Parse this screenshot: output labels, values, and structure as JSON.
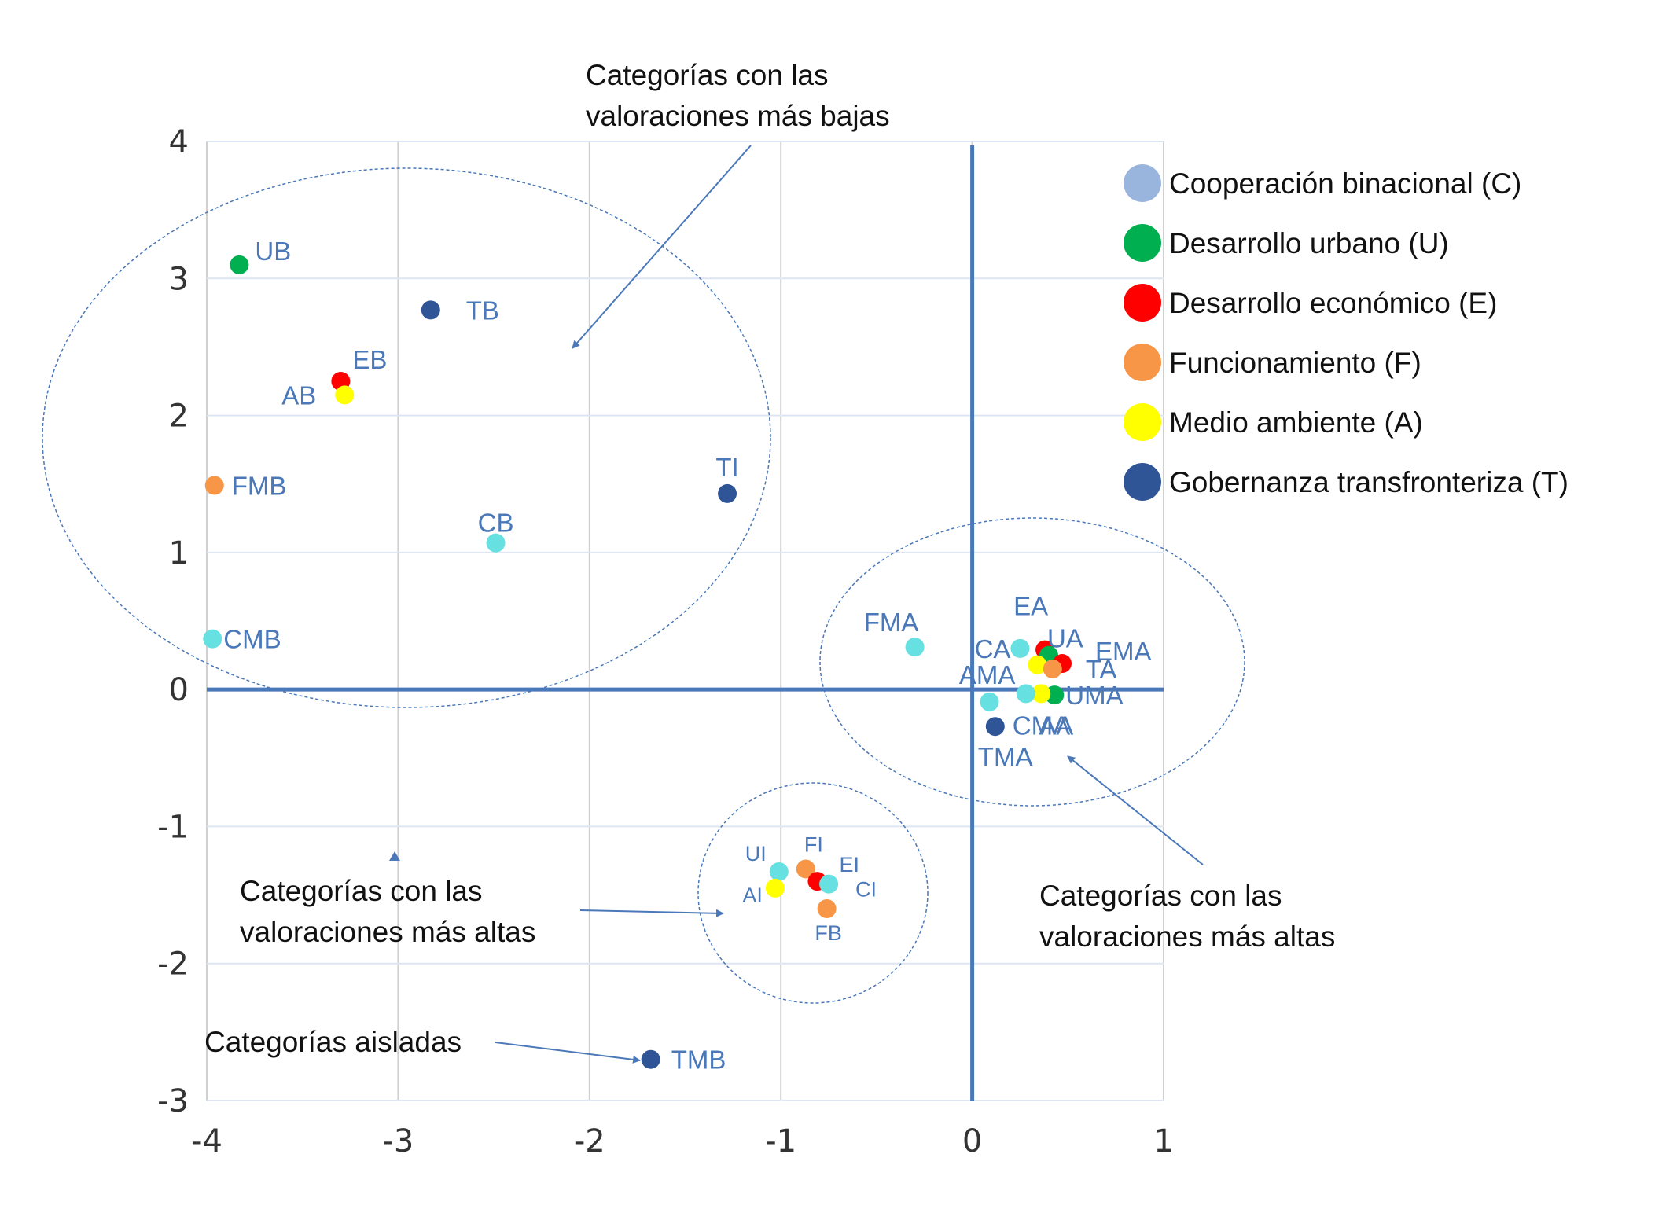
{
  "chart_data": {
    "type": "scatter",
    "xlim": [
      -4,
      1
    ],
    "ylim": [
      -3,
      4
    ],
    "x_ticks": [
      -4,
      -3,
      -2,
      -1,
      0,
      1
    ],
    "y_ticks": [
      4,
      3,
      2,
      1,
      0,
      -1,
      -2,
      -3
    ],
    "grid": "vertical and horizontal gridlines",
    "legend_position": "top-right",
    "legend": [
      {
        "label": "Cooperación binacional (C)",
        "color": "#9ab5dd"
      },
      {
        "label": "Desarrollo urbano (U)",
        "color": "#00b050"
      },
      {
        "label": "Desarrollo económico (E)",
        "color": "#ff0000"
      },
      {
        "label": "Funcionamiento (F)",
        "color": "#f79646"
      },
      {
        "label": "Medio ambiente (A)",
        "color": "#ffff00"
      },
      {
        "label": "Gobernanza transfronteriza (T)",
        "color": "#2f5597"
      }
    ],
    "points": [
      {
        "label": "UB",
        "x": -3.83,
        "y": 3.1,
        "color": "#00b050"
      },
      {
        "label": "TB",
        "x": -2.83,
        "y": 2.77,
        "color": "#2f5597"
      },
      {
        "label": "EB",
        "x": -3.3,
        "y": 2.25,
        "color": "#ff0000"
      },
      {
        "label": "AB",
        "x": -3.28,
        "y": 2.15,
        "color": "#ffff00"
      },
      {
        "label": "FMB",
        "x": -3.96,
        "y": 1.49,
        "color": "#f79646"
      },
      {
        "label": "TI",
        "x": -1.28,
        "y": 1.43,
        "color": "#2f5597"
      },
      {
        "label": "CB",
        "x": -2.49,
        "y": 1.07,
        "color": "#66e0e0"
      },
      {
        "label": "CMB",
        "x": -3.97,
        "y": 0.37,
        "color": "#66e0e0"
      },
      {
        "label": "FMA",
        "x": -0.3,
        "y": 0.31,
        "color": "#66e0e0"
      },
      {
        "label": "CA",
        "x": 0.25,
        "y": 0.3,
        "color": "#66e0e0"
      },
      {
        "label": "EA",
        "x": 0.38,
        "y": 0.29,
        "color": "#ff0000"
      },
      {
        "label": "UA",
        "x": 0.4,
        "y": 0.25,
        "color": "#00b050"
      },
      {
        "label": "EMA",
        "x": 0.47,
        "y": 0.19,
        "color": "#ff0000"
      },
      {
        "label": "AMA",
        "x": 0.34,
        "y": 0.18,
        "color": "#ffff00"
      },
      {
        "label": "TA",
        "x": 0.42,
        "y": 0.15,
        "color": "#f79646"
      },
      {
        "label": "UMA",
        "x": 0.43,
        "y": -0.04,
        "color": "#00b050"
      },
      {
        "label": "AA",
        "x": 0.36,
        "y": -0.03,
        "color": "#ffff00"
      },
      {
        "label": "CMA",
        "x": 0.28,
        "y": -0.03,
        "color": "#66e0e0"
      },
      {
        "label": "TMA",
        "x": 0.12,
        "y": -0.27,
        "color": "#2f5597"
      },
      {
        "label": "",
        "x": 0.09,
        "y": -0.09,
        "color": "#66e0e0"
      },
      {
        "label": "UI",
        "x": -1.01,
        "y": -1.33,
        "color": "#66e0e0"
      },
      {
        "label": "FI",
        "x": -0.87,
        "y": -1.31,
        "color": "#f79646"
      },
      {
        "label": "EI",
        "x": -0.81,
        "y": -1.4,
        "color": "#ff0000"
      },
      {
        "label": "CI",
        "x": -0.75,
        "y": -1.42,
        "color": "#66e0e0"
      },
      {
        "label": "AI",
        "x": -1.03,
        "y": -1.45,
        "color": "#ffff00"
      },
      {
        "label": "FB",
        "x": -0.76,
        "y": -1.6,
        "color": "#f79646"
      },
      {
        "label": "TMB",
        "x": -1.68,
        "y": -2.7,
        "color": "#2f5597"
      }
    ],
    "annotations": [
      {
        "lines": [
          "Categorías con las",
          "valoraciones más bajas"
        ]
      },
      {
        "lines": [
          "Categorías con las",
          "valoraciones más altas"
        ]
      },
      {
        "lines": [
          "Categorías con las",
          "valoraciones más altas"
        ]
      },
      {
        "lines": [
          "Categorías aisladas"
        ]
      }
    ]
  }
}
